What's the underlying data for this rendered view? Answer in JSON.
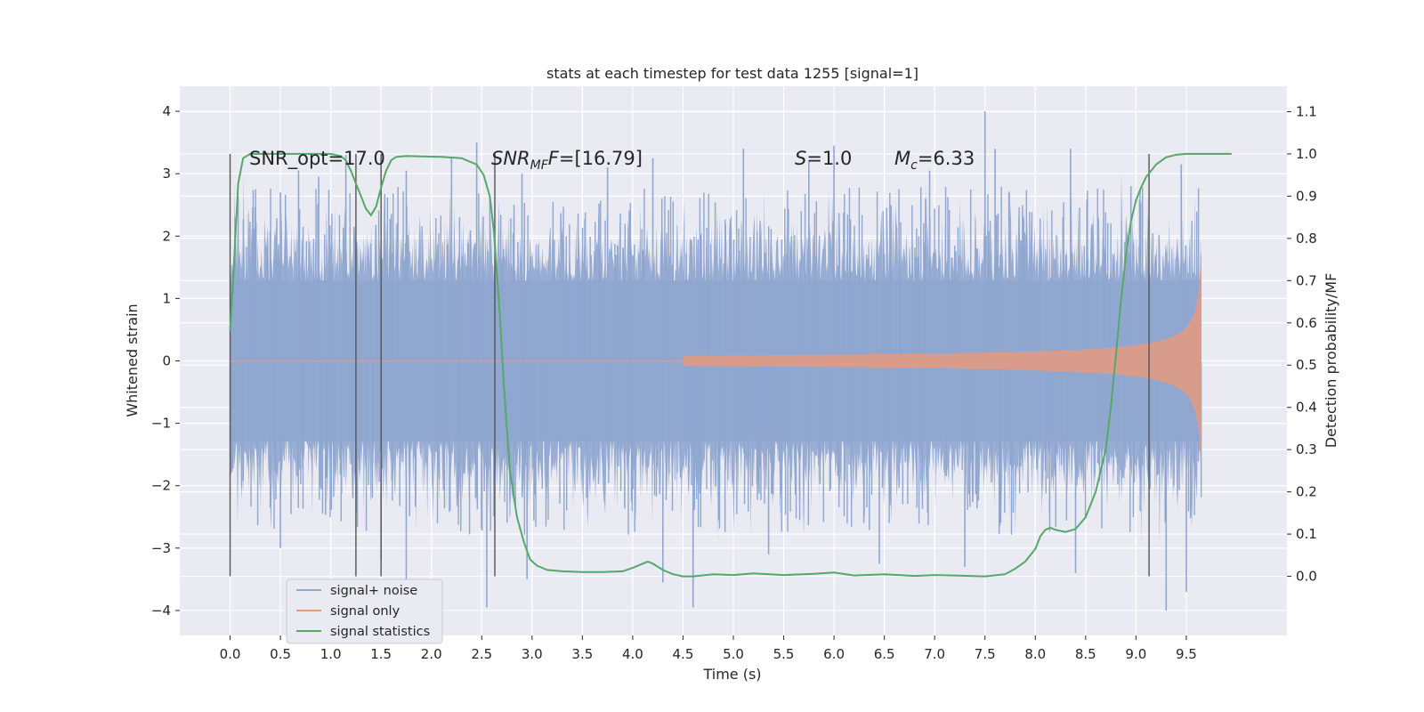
{
  "chart_data": {
    "type": "line",
    "title": "stats at each timestep for test data 1255 [signal=1]",
    "xlabel": "Time (s)",
    "ylabel": "Whitened strain",
    "y2label": "Detection probability/MF",
    "xlim": [
      -0.5,
      10.5
    ],
    "ylim": [
      -4.4,
      4.4
    ],
    "y2lim": [
      -0.14,
      1.16
    ],
    "grid": true,
    "xticks": [
      "0.0",
      "0.5",
      "1.0",
      "1.5",
      "2.0",
      "2.5",
      "3.0",
      "3.5",
      "4.0",
      "4.5",
      "5.0",
      "5.5",
      "6.0",
      "6.5",
      "7.0",
      "7.5",
      "8.0",
      "8.5",
      "9.0",
      "9.5"
    ],
    "yticks": [
      "4",
      "3",
      "2",
      "1",
      "0",
      "−1",
      "−2",
      "−3",
      "−4"
    ],
    "y2ticks": [
      "1.1",
      "1.0",
      "0.9",
      "0.8",
      "0.7",
      "0.6",
      "0.5",
      "0.4",
      "0.3",
      "0.2",
      "0.1",
      "0.0"
    ],
    "annotations": {
      "snr_opt": "SNR_opt=17.0",
      "snr_mf_main": "SNR",
      "snr_mf_sub": "MF",
      "snr_mf_value": "=[16.79]",
      "s_main": "S",
      "s_value": "=1.0",
      "mc_main": "M",
      "mc_sub": "c",
      "mc_value": "=6.33"
    },
    "legend": {
      "position": "lower-left",
      "entries": [
        "signal+ noise",
        "signal only",
        "signal statistics"
      ]
    },
    "vertical_markers": [
      0.0,
      1.25,
      1.5,
      2.63,
      9.13
    ],
    "series": [
      {
        "name": "signal+ noise",
        "color": "#8fa6cf",
        "description_range": [
          0.0,
          9.65
        ],
        "typical_amplitude": 2.3,
        "peaks": [
          [
            0.05,
            2.3
          ],
          [
            0.5,
            2.7
          ],
          [
            0.68,
            3.05
          ],
          [
            0.88,
            2.95
          ],
          [
            1.15,
            3.3
          ],
          [
            1.75,
            3.05
          ],
          [
            2.2,
            3.25
          ],
          [
            2.45,
            3.5
          ],
          [
            2.9,
            3.0
          ],
          [
            3.75,
            3.1
          ],
          [
            4.2,
            3.25
          ],
          [
            5.1,
            3.4
          ],
          [
            5.75,
            3.2
          ],
          [
            6.0,
            3.45
          ],
          [
            6.95,
            3.05
          ],
          [
            7.5,
            4.0
          ],
          [
            7.6,
            3.4
          ],
          [
            8.35,
            3.4
          ],
          [
            8.95,
            2.8
          ],
          [
            9.45,
            3.15
          ]
        ],
        "troughs": [
          [
            0.5,
            -3.0
          ],
          [
            1.5,
            -3.2
          ],
          [
            1.75,
            -3.55
          ],
          [
            2.55,
            -3.95
          ],
          [
            2.95,
            -3.5
          ],
          [
            4.3,
            -3.55
          ],
          [
            4.6,
            -3.95
          ],
          [
            5.35,
            -3.1
          ],
          [
            6.45,
            -3.25
          ],
          [
            7.3,
            -3.3
          ],
          [
            8.4,
            -3.4
          ],
          [
            9.3,
            -4.0
          ],
          [
            9.5,
            -3.7
          ]
        ]
      },
      {
        "name": "signal only",
        "color": "#e49a80",
        "t_start": 4.5,
        "t_merger": 9.65,
        "peak_amplitude": 1.75
      },
      {
        "name": "signal statistics",
        "color": "#55a868",
        "axis": "right",
        "x": [
          0.0,
          0.03,
          0.08,
          0.13,
          0.2,
          0.35,
          0.6,
          0.9,
          1.0,
          1.1,
          1.15,
          1.2,
          1.25,
          1.3,
          1.35,
          1.4,
          1.45,
          1.5,
          1.55,
          1.6,
          1.65,
          1.75,
          1.9,
          2.1,
          2.3,
          2.45,
          2.52,
          2.58,
          2.62,
          2.68,
          2.72,
          2.78,
          2.85,
          2.92,
          2.98,
          3.05,
          3.15,
          3.3,
          3.5,
          3.7,
          3.9,
          4.0,
          4.1,
          4.15,
          4.2,
          4.3,
          4.4,
          4.5,
          4.6,
          4.8,
          5.0,
          5.2,
          5.5,
          5.8,
          6.0,
          6.2,
          6.5,
          6.8,
          7.0,
          7.2,
          7.5,
          7.7,
          7.8,
          7.9,
          8.0,
          8.05,
          8.1,
          8.15,
          8.2,
          8.3,
          8.4,
          8.5,
          8.6,
          8.7,
          8.75,
          8.8,
          8.85,
          8.9,
          8.95,
          9.0,
          9.05,
          9.1,
          9.2,
          9.3,
          9.4,
          9.5,
          9.7,
          9.95
        ],
        "y": [
          0.58,
          0.7,
          0.93,
          0.99,
          1.0,
          1.0,
          1.0,
          1.0,
          1.0,
          0.995,
          0.985,
          0.96,
          0.93,
          0.9,
          0.87,
          0.855,
          0.875,
          0.92,
          0.96,
          0.985,
          0.993,
          0.995,
          0.994,
          0.993,
          0.99,
          0.975,
          0.95,
          0.9,
          0.82,
          0.62,
          0.45,
          0.25,
          0.14,
          0.08,
          0.04,
          0.025,
          0.015,
          0.012,
          0.01,
          0.01,
          0.012,
          0.02,
          0.03,
          0.035,
          0.03,
          0.015,
          0.005,
          0.0,
          0.0,
          0.005,
          0.003,
          0.007,
          0.003,
          0.006,
          0.009,
          0.002,
          0.005,
          0.001,
          0.003,
          0.002,
          0.0,
          0.005,
          0.018,
          0.035,
          0.065,
          0.095,
          0.11,
          0.115,
          0.11,
          0.105,
          0.112,
          0.14,
          0.2,
          0.3,
          0.4,
          0.52,
          0.65,
          0.76,
          0.84,
          0.89,
          0.92,
          0.945,
          0.975,
          0.992,
          0.998,
          1.0,
          1.0,
          1.0
        ]
      }
    ]
  }
}
